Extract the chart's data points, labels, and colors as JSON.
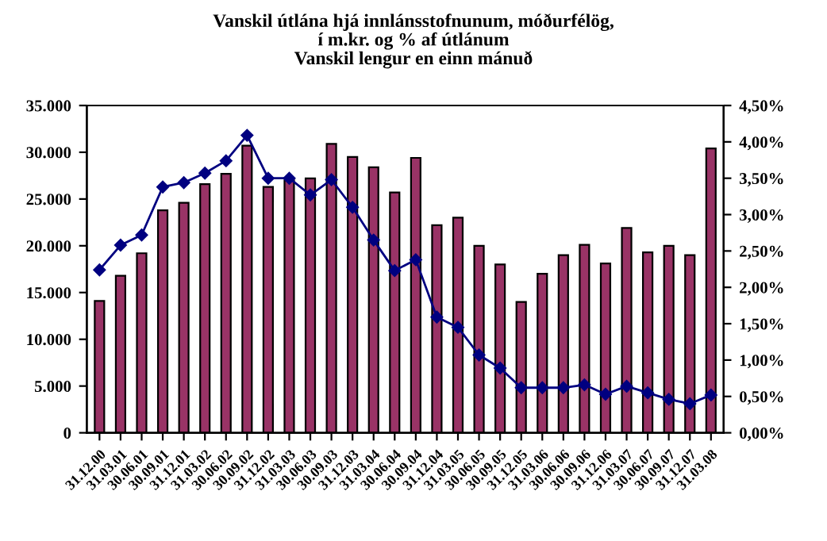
{
  "chart_data": {
    "type": "bar",
    "title": "Vanskil útlána hjá innlánsstofnunum, móðurfélög,\ní m.kr. og % af útlánum\nVanskil lengur en einn mánuð",
    "categories": [
      "31.12.00",
      "31.03.01",
      "30.06.01",
      "30.09.01",
      "31.12.01",
      "31.03.02",
      "30.06.02",
      "30.09.02",
      "31.12.02",
      "31.03.03",
      "30.06.03",
      "30.09.03",
      "31.12.03",
      "31.03.04",
      "30.06.04",
      "30.09.04",
      "31.12.04",
      "31.03.05",
      "30.06.05",
      "30.09.05",
      "31.12.05",
      "31.03.06",
      "30.06.06",
      "30.09.06",
      "31.12.06",
      "31.03.07",
      "30.06.07",
      "30.09.07",
      "31.12.07",
      "31.03.08"
    ],
    "series": [
      {
        "color": "#993366",
        "values": [
          14100,
          16800,
          19200,
          23800,
          24600,
          26600,
          27700,
          30700,
          26300,
          27000,
          27200,
          30900,
          29500,
          28400,
          25700,
          29400,
          22200,
          23000,
          20000,
          18000,
          14000,
          17000,
          19000,
          20100,
          18100,
          21900,
          19300,
          20000,
          19000,
          30400
        ]
      },
      {
        "type": "line",
        "axis": "y2",
        "color": "#000080",
        "marker": "diamond",
        "line_style": "solid",
        "values": [
          2.24,
          2.58,
          2.72,
          3.38,
          3.44,
          3.57,
          3.74,
          4.09,
          3.5,
          3.5,
          3.27,
          3.48,
          3.1,
          2.65,
          2.23,
          2.38,
          1.59,
          1.45,
          1.07,
          0.89,
          0.62,
          0.62,
          0.62,
          0.66,
          0.53,
          0.64,
          0.55,
          0.46,
          0.4,
          0.52
        ]
      }
    ],
    "ylim": [
      0,
      35000
    ],
    "yticks": [
      0,
      {
        "value": 5000,
        "label": "5.000"
      },
      {
        "value": 10000,
        "label": "10.000"
      },
      {
        "value": 15000,
        "label": "15.000"
      },
      {
        "value": 20000,
        "label": "20.000"
      },
      {
        "value": 25000,
        "label": "25.000"
      },
      {
        "value": 30000,
        "label": "30.000"
      },
      {
        "value": 35000,
        "label": "35.000"
      }
    ],
    "y2lim": [
      0,
      4.5
    ],
    "y2ticks": [
      {
        "value": 0,
        "label": "0,00%"
      },
      {
        "value": 0.5,
        "label": "0,50%"
      },
      {
        "value": 1,
        "label": "1,00%"
      },
      {
        "value": 1.5,
        "label": "1,50%"
      },
      {
        "value": 2,
        "label": "2,00%"
      },
      {
        "value": 2.5,
        "label": "2,50%"
      },
      {
        "value": 3,
        "label": "3,00%"
      },
      {
        "value": 3.5,
        "label": "3,50%"
      },
      {
        "value": 4,
        "label": "4,00%"
      },
      {
        "value": 4.5,
        "label": "4,50%"
      }
    ],
    "grid": false,
    "legend": false
  }
}
